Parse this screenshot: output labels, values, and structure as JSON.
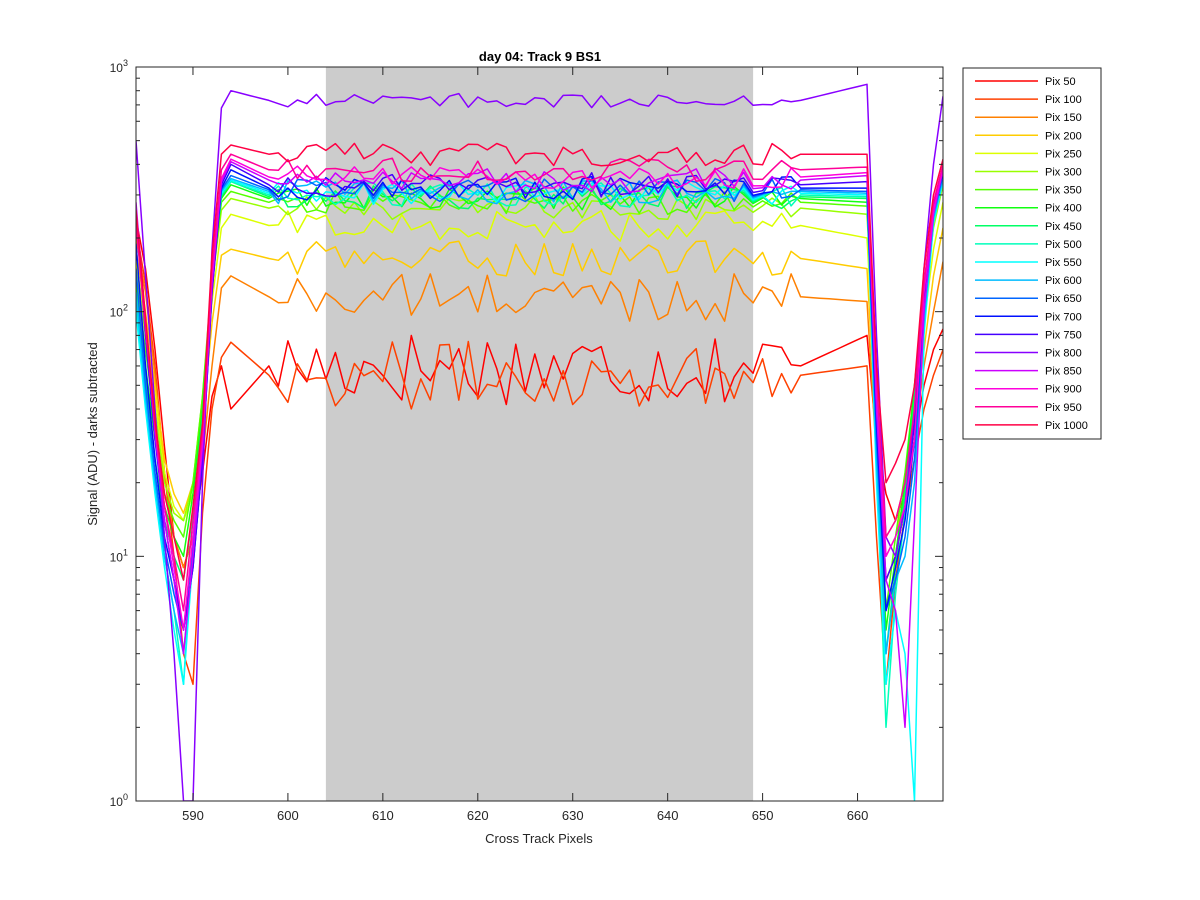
{
  "chart_data": {
    "type": "line",
    "title": "day 04: Track 9  BS1",
    "xlabel": "Cross Track Pixels",
    "ylabel": "Signal (ADU) - darks subtracted",
    "xlim": [
      584,
      669
    ],
    "ylim": [
      1,
      1000
    ],
    "yscale": "log",
    "grid": false,
    "legend_position": "outside-right",
    "x_ticks": [
      590,
      600,
      610,
      620,
      630,
      640,
      650,
      660
    ],
    "x_tick_labels": [
      "590",
      "600",
      "610",
      "620",
      "630",
      "640",
      "650",
      "660"
    ],
    "y_ticks": [
      1,
      10,
      100,
      1000
    ],
    "y_tick_labels": [
      {
        "base": "10",
        "exp": "0"
      },
      {
        "base": "10",
        "exp": "1"
      },
      {
        "base": "10",
        "exp": "2"
      },
      {
        "base": "10",
        "exp": "3"
      }
    ],
    "shaded_region": {
      "x": [
        604,
        649
      ],
      "color": "#cccccc"
    },
    "series": [
      {
        "name": "Pix 50",
        "color": "#ff0000",
        "plateau": 60,
        "noise": 0.32,
        "entry": [
          240,
          150,
          70,
          28,
          12,
          9,
          12,
          22,
          45,
          60,
          40
        ],
        "exit": [
          80,
          30,
          18,
          14,
          18,
          30,
          50,
          70,
          85
        ]
      },
      {
        "name": "Pix 100",
        "color": "#ff4000",
        "plateau": 55,
        "noise": 0.28,
        "entry": [
          220,
          130,
          60,
          22,
          10,
          4,
          3,
          15,
          40,
          65,
          75
        ],
        "exit": [
          60,
          12,
          3,
          8,
          15,
          25,
          40,
          55,
          70
        ]
      },
      {
        "name": "Pix 150",
        "color": "#ff8000",
        "plateau": 115,
        "noise": 0.2,
        "entry": [
          200,
          120,
          55,
          22,
          12,
          9,
          12,
          25,
          60,
          125,
          140
        ],
        "exit": [
          110,
          25,
          8,
          10,
          16,
          30,
          60,
          100,
          160
        ]
      },
      {
        "name": "Pix 200",
        "color": "#ffcc00",
        "plateau": 165,
        "noise": 0.15,
        "entry": [
          180,
          100,
          50,
          25,
          18,
          15,
          20,
          35,
          90,
          170,
          180
        ],
        "exit": [
          150,
          30,
          10,
          12,
          18,
          35,
          70,
          140,
          220
        ]
      },
      {
        "name": "Pix 250",
        "color": "#ddff00",
        "plateau": 225,
        "noise": 0.13,
        "entry": [
          160,
          90,
          45,
          22,
          16,
          14,
          18,
          40,
          110,
          220,
          250
        ],
        "exit": [
          200,
          40,
          12,
          14,
          20,
          40,
          90,
          180,
          280
        ]
      },
      {
        "name": "Pix 300",
        "color": "#99ff00",
        "plateau": 265,
        "noise": 0.1,
        "entry": [
          150,
          80,
          40,
          20,
          15,
          14,
          20,
          45,
          130,
          260,
          290
        ],
        "exit": [
          250,
          45,
          8,
          10,
          20,
          45,
          110,
          220,
          330
        ]
      },
      {
        "name": "Pix 350",
        "color": "#55ff00",
        "plateau": 280,
        "noise": 0.1,
        "entry": [
          140,
          70,
          35,
          18,
          14,
          12,
          20,
          45,
          140,
          280,
          310
        ],
        "exit": [
          270,
          40,
          6,
          12,
          22,
          50,
          120,
          240,
          360
        ]
      },
      {
        "name": "Pix 400",
        "color": "#11ff11",
        "plateau": 290,
        "noise": 0.1,
        "entry": [
          130,
          60,
          30,
          16,
          12,
          10,
          18,
          40,
          140,
          290,
          330
        ],
        "exit": [
          280,
          35,
          5,
          10,
          20,
          50,
          120,
          250,
          380
        ]
      },
      {
        "name": "Pix 450",
        "color": "#00ff66",
        "plateau": 295,
        "noise": 0.1,
        "entry": [
          120,
          55,
          25,
          14,
          10,
          8,
          15,
          38,
          140,
          295,
          340
        ],
        "exit": [
          290,
          30,
          4,
          9,
          18,
          45,
          115,
          245,
          360
        ]
      },
      {
        "name": "Pix 500",
        "color": "#00ffbb",
        "plateau": 300,
        "noise": 0.1,
        "entry": [
          110,
          45,
          20,
          10,
          6,
          3,
          12,
          35,
          140,
          300,
          340
        ],
        "exit": [
          295,
          25,
          2,
          7,
          15,
          40,
          110,
          240,
          350
        ]
      },
      {
        "name": "Pix 550",
        "color": "#00ffff",
        "plateau": 305,
        "noise": 0.1,
        "entry": [
          100,
          40,
          18,
          9,
          5,
          3,
          10,
          32,
          140,
          305,
          345
        ],
        "exit": [
          300,
          20,
          3,
          6,
          4,
          1,
          80,
          230,
          340
        ]
      },
      {
        "name": "Pix 600",
        "color": "#00bbff",
        "plateau": 310,
        "noise": 0.1,
        "entry": [
          120,
          45,
          20,
          10,
          6,
          4,
          10,
          30,
          140,
          310,
          350
        ],
        "exit": [
          305,
          25,
          4,
          8,
          10,
          20,
          90,
          240,
          350
        ]
      },
      {
        "name": "Pix 650",
        "color": "#0066ff",
        "plateau": 315,
        "noise": 0.1,
        "entry": [
          150,
          50,
          22,
          11,
          7,
          5,
          11,
          30,
          140,
          315,
          360
        ],
        "exit": [
          310,
          30,
          6,
          8,
          12,
          25,
          100,
          250,
          360
        ]
      },
      {
        "name": "Pix 700",
        "color": "#0011ff",
        "plateau": 320,
        "noise": 0.1,
        "entry": [
          190,
          60,
          25,
          12,
          8,
          5,
          9,
          25,
          120,
          320,
          380
        ],
        "exit": [
          320,
          35,
          6,
          9,
          14,
          30,
          110,
          260,
          370
        ]
      },
      {
        "name": "Pix 750",
        "color": "#4400ff",
        "plateau": 330,
        "noise": 0.1,
        "entry": [
          260,
          80,
          30,
          14,
          8,
          5,
          9,
          25,
          120,
          330,
          400
        ],
        "exit": [
          340,
          40,
          8,
          10,
          16,
          35,
          120,
          270,
          380
        ]
      },
      {
        "name": "Pix 800",
        "color": "#8800ff",
        "plateau": 730,
        "noise": 0.06,
        "entry": [
          500,
          140,
          40,
          12,
          4,
          1,
          1,
          20,
          180,
          680,
          800
        ],
        "exit": [
          850,
          80,
          12,
          10,
          16,
          40,
          150,
          400,
          760
        ]
      },
      {
        "name": "Pix 850",
        "color": "#cc00ff",
        "plateau": 345,
        "noise": 0.1,
        "entry": [
          280,
          90,
          32,
          14,
          8,
          4,
          10,
          28,
          130,
          340,
          410
        ],
        "exit": [
          360,
          40,
          8,
          6,
          2,
          14,
          100,
          250,
          380
        ]
      },
      {
        "name": "Pix 900",
        "color": "#ff00dd",
        "plateau": 355,
        "noise": 0.1,
        "entry": [
          250,
          90,
          34,
          16,
          9,
          5,
          12,
          30,
          140,
          350,
          420
        ],
        "exit": [
          370,
          50,
          10,
          12,
          16,
          30,
          120,
          260,
          390
        ]
      },
      {
        "name": "Pix 950",
        "color": "#ff0099",
        "plateau": 380,
        "noise": 0.1,
        "entry": [
          230,
          85,
          34,
          16,
          10,
          6,
          14,
          32,
          150,
          380,
          440
        ],
        "exit": [
          390,
          55,
          12,
          14,
          20,
          40,
          130,
          280,
          400
        ]
      },
      {
        "name": "Pix 1000",
        "color": "#ff0044",
        "plateau": 440,
        "noise": 0.1,
        "entry": [
          260,
          95,
          36,
          18,
          12,
          8,
          16,
          35,
          170,
          440,
          480
        ],
        "exit": [
          440,
          60,
          20,
          24,
          30,
          50,
          150,
          300,
          420
        ]
      }
    ]
  }
}
